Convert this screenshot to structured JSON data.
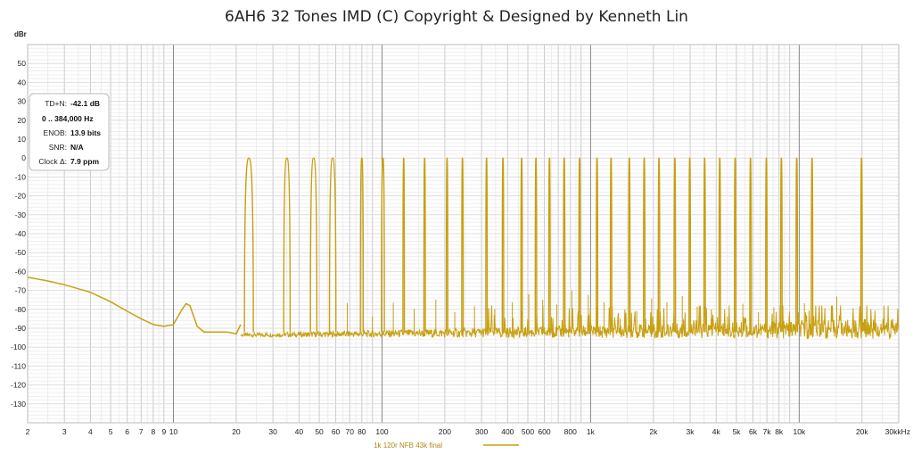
{
  "chart_data": {
    "type": "line",
    "title": "6AH6 32 Tones IMD (C) Copyright & Designed by Kenneth Lin",
    "y_unit": "dBr",
    "x_unit_suffix": "kHz",
    "x_scale": "log",
    "xlim": [
      2,
      30000
    ],
    "ylim": [
      -140,
      60
    ],
    "grid": true,
    "x_tick_labels": [
      {
        "value": 2,
        "label": "2"
      },
      {
        "value": 3,
        "label": "3"
      },
      {
        "value": 4,
        "label": "4"
      },
      {
        "value": 5,
        "label": "5"
      },
      {
        "value": 6,
        "label": "6"
      },
      {
        "value": 7,
        "label": "7"
      },
      {
        "value": 8,
        "label": "8"
      },
      {
        "value": 9,
        "label": "9"
      },
      {
        "value": 10,
        "label": "10"
      },
      {
        "value": 20,
        "label": "20"
      },
      {
        "value": 30,
        "label": "30"
      },
      {
        "value": 40,
        "label": "40"
      },
      {
        "value": 50,
        "label": "50"
      },
      {
        "value": 60,
        "label": "60"
      },
      {
        "value": 70,
        "label": "70"
      },
      {
        "value": 80,
        "label": "80"
      },
      {
        "value": 100,
        "label": "100"
      },
      {
        "value": 200,
        "label": "200"
      },
      {
        "value": 300,
        "label": "300"
      },
      {
        "value": 400,
        "label": "400"
      },
      {
        "value": 500,
        "label": "500"
      },
      {
        "value": 600,
        "label": "600"
      },
      {
        "value": 800,
        "label": "800"
      },
      {
        "value": 1000,
        "label": "1k"
      },
      {
        "value": 2000,
        "label": "2k"
      },
      {
        "value": 3000,
        "label": "3k"
      },
      {
        "value": 4000,
        "label": "4k"
      },
      {
        "value": 5000,
        "label": "5k"
      },
      {
        "value": 6000,
        "label": "6k"
      },
      {
        "value": 7000,
        "label": "7k"
      },
      {
        "value": 8000,
        "label": "8k"
      },
      {
        "value": 10000,
        "label": "10k"
      },
      {
        "value": 20000,
        "label": "20k"
      },
      {
        "value": 30000,
        "label": "30k"
      }
    ],
    "y_ticks": [
      50,
      40,
      30,
      20,
      10,
      0,
      -10,
      -20,
      -30,
      -40,
      -50,
      -60,
      -70,
      -80,
      -90,
      -100,
      -110,
      -120,
      -130
    ],
    "series": [
      {
        "name": "1k 120r NFB 43k final",
        "color": "#c8a010",
        "tones_hz": [
          23,
          35,
          47,
          58,
          80,
          101,
          127,
          160,
          205,
          243,
          317,
          380,
          467,
          547,
          635,
          747,
          885,
          1073,
          1253,
          1533,
          1807,
          2127,
          2533,
          2987,
          3520,
          4160,
          4930,
          5840,
          6960,
          8213,
          9730,
          11520,
          19900
        ],
        "tone_level_db": 0,
        "low_freq_curve": [
          [
            2,
            -63
          ],
          [
            2.5,
            -65
          ],
          [
            3,
            -67
          ],
          [
            4,
            -71
          ],
          [
            5,
            -76
          ],
          [
            6,
            -81
          ],
          [
            7,
            -85
          ],
          [
            8,
            -88
          ],
          [
            9,
            -89
          ],
          [
            10,
            -88
          ],
          [
            11,
            -80
          ],
          [
            11.5,
            -77
          ],
          [
            12,
            -78
          ],
          [
            13,
            -89
          ],
          [
            14,
            -92
          ],
          [
            18,
            -92
          ],
          [
            20,
            -93
          ],
          [
            21,
            -88
          ]
        ],
        "noise_floor_db": [
          -93,
          -88
        ]
      }
    ]
  },
  "stats_box": {
    "rows": [
      {
        "label": "TD+N:",
        "value": "-42.1 dB"
      },
      {
        "label": "0 .. 384,000 Hz",
        "value": ""
      },
      {
        "label": "ENOB:",
        "value": "13.9 bits"
      },
      {
        "label": "SNR:",
        "value": "N/A"
      },
      {
        "label": "Clock Δ:",
        "value": "7.9 ppm"
      }
    ]
  },
  "legend": {
    "label": "1k 120r NFB 43k final",
    "position": "bottom-center"
  }
}
